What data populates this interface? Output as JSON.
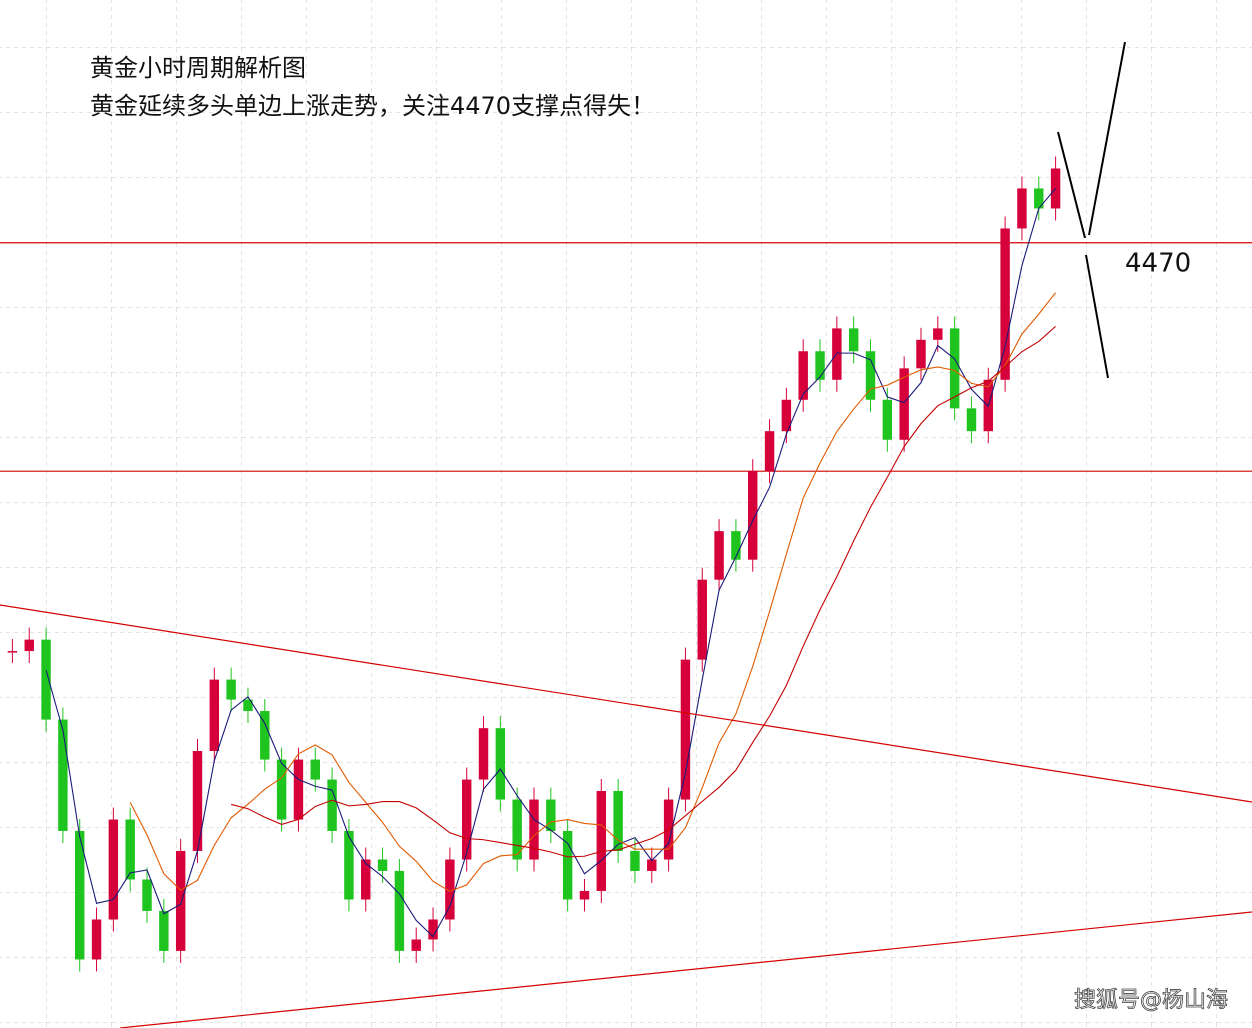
{
  "chart_data": {
    "type": "candlestick",
    "title": "黄金小时周期解析图",
    "subtitle": "黄金延续多头单边上涨走势，关注4470支撑点得失！",
    "watermark": "搜狐号@杨山海",
    "values": [
      4327,
      4331,
      4303,
      4264,
      4219,
      4233,
      4268,
      4247,
      4236,
      4222,
      4257,
      4292,
      4317,
      4310,
      4306,
      4289,
      4268,
      4289,
      4282,
      4264,
      4240,
      4254,
      4250,
      4222,
      4226,
      4233,
      4254,
      4282,
      4300,
      4275,
      4254,
      4275,
      4264,
      4240,
      4243,
      4278,
      4257,
      4250,
      4254,
      4275,
      4324,
      4352,
      4369,
      4359,
      4390,
      4404,
      4415,
      4432,
      4422,
      4440,
      4432,
      4415,
      4401,
      4426,
      4436,
      4440,
      4412,
      4404,
      4422,
      4475,
      4489,
      4482,
      4496
    ],
    "levels": [
      4470,
      4390
    ],
    "up_color": "#d6003a",
    "down_color": "#1fc41f",
    "level_color": "#d40000",
    "ylim": [
      4195,
      4555
    ]
  }
}
